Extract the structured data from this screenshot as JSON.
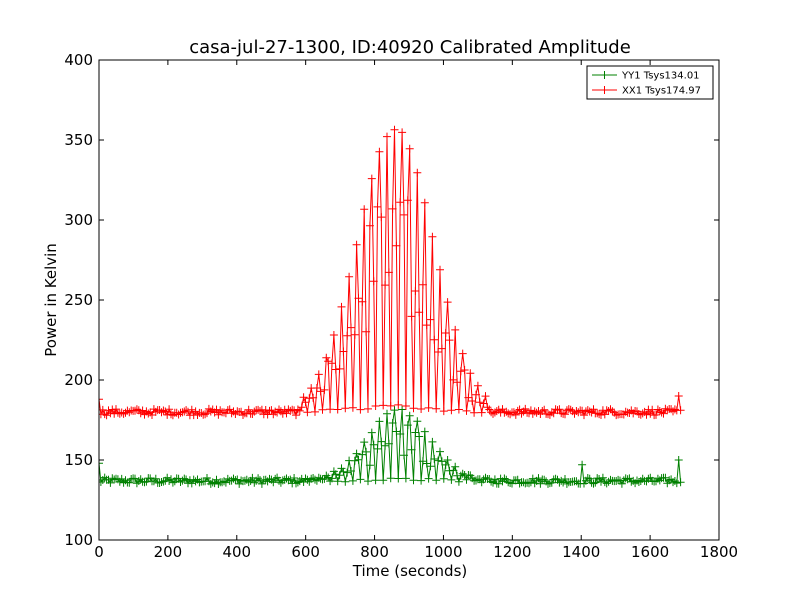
{
  "chart_data": {
    "type": "line",
    "title": "casa-jul-27-1300, ID:40920 Calibrated Amplitude",
    "xlabel": "Time (seconds)",
    "ylabel": "Power in Kelvin",
    "xlim": [
      0,
      1800
    ],
    "ylim": [
      100,
      400
    ],
    "xticks": [
      0,
      200,
      400,
      600,
      800,
      1000,
      1200,
      1400,
      1600,
      1800
    ],
    "yticks": [
      100,
      150,
      200,
      250,
      300,
      350,
      400
    ],
    "grid": false,
    "legend_position": "top-right",
    "time_range": [
      0,
      1690
    ],
    "series": [
      {
        "name": "YY1 Tsys134.01",
        "color": "#008000",
        "baseline": 137,
        "baseline_noise": 2,
        "peak_center": 870,
        "peak_value": 181,
        "peak_width": 90,
        "peak_extent": [
          600,
          1120
        ],
        "spikes": [
          [
            0,
            148
          ],
          [
            1400,
            147
          ],
          [
            1685,
            150
          ]
        ]
      },
      {
        "name": "XX1 Tsys174.97",
        "color": "#ff0000",
        "baseline": 180,
        "baseline_noise": 2,
        "peak_center": 860,
        "peak_value": 357,
        "peak_width": 110,
        "peak_extent": [
          580,
          1130
        ],
        "spikes": [
          [
            0,
            188
          ],
          [
            1685,
            190
          ]
        ]
      }
    ]
  }
}
